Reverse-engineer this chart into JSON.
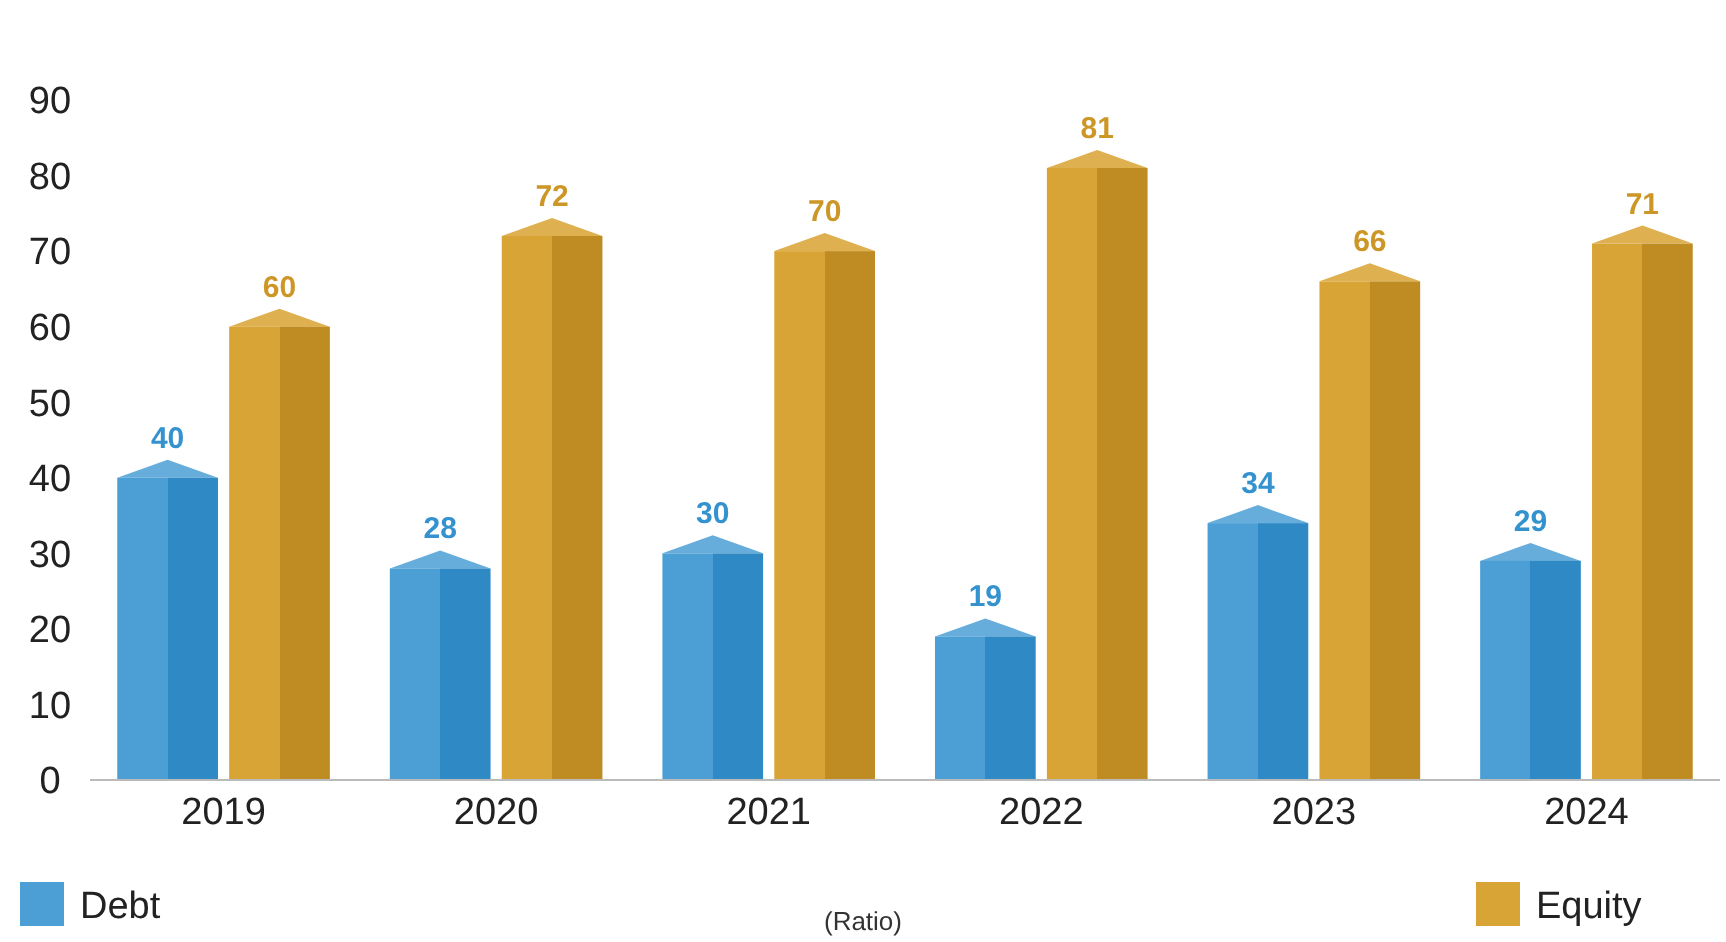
{
  "chart_data": {
    "type": "bar",
    "categories": [
      "2019",
      "2020",
      "2021",
      "2022",
      "2023",
      "2024"
    ],
    "series": [
      {
        "name": "Debt",
        "color": "#4c9fd5",
        "values": [
          40,
          28,
          30,
          19,
          34,
          29
        ]
      },
      {
        "name": "Equity",
        "color": "#d9a436",
        "values": [
          60,
          72,
          70,
          81,
          66,
          71
        ]
      }
    ],
    "ylim": [
      0,
      90
    ],
    "yticks": [
      0,
      10,
      20,
      30,
      40,
      50,
      60,
      70,
      80,
      90
    ],
    "grid": false,
    "legend": "bottom",
    "data_labels": true,
    "annotations": [
      "(Ratio)"
    ]
  }
}
